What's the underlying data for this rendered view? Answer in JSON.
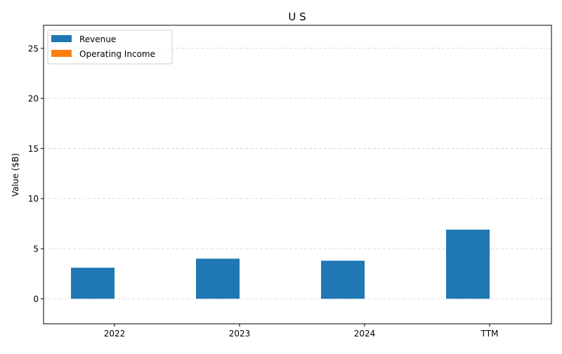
{
  "chart_data": {
    "type": "bar",
    "title": "U S",
    "xlabel": "",
    "ylabel": "Value ($B)",
    "categories": [
      "2022",
      "2023",
      "2024",
      "TTM"
    ],
    "series": [
      {
        "name": "Revenue",
        "color": "#1f77b4",
        "values": [
          3.1,
          4.0,
          3.8,
          6.9
        ]
      },
      {
        "name": "Operating Income",
        "color": "#ff7f0e",
        "values": [
          0,
          0,
          0,
          0
        ]
      }
    ],
    "ylim": [
      -2.5,
      27.3
    ],
    "yticks": [
      0,
      5,
      10,
      15,
      20,
      25
    ],
    "grid": true,
    "legend_position": "top-left"
  }
}
